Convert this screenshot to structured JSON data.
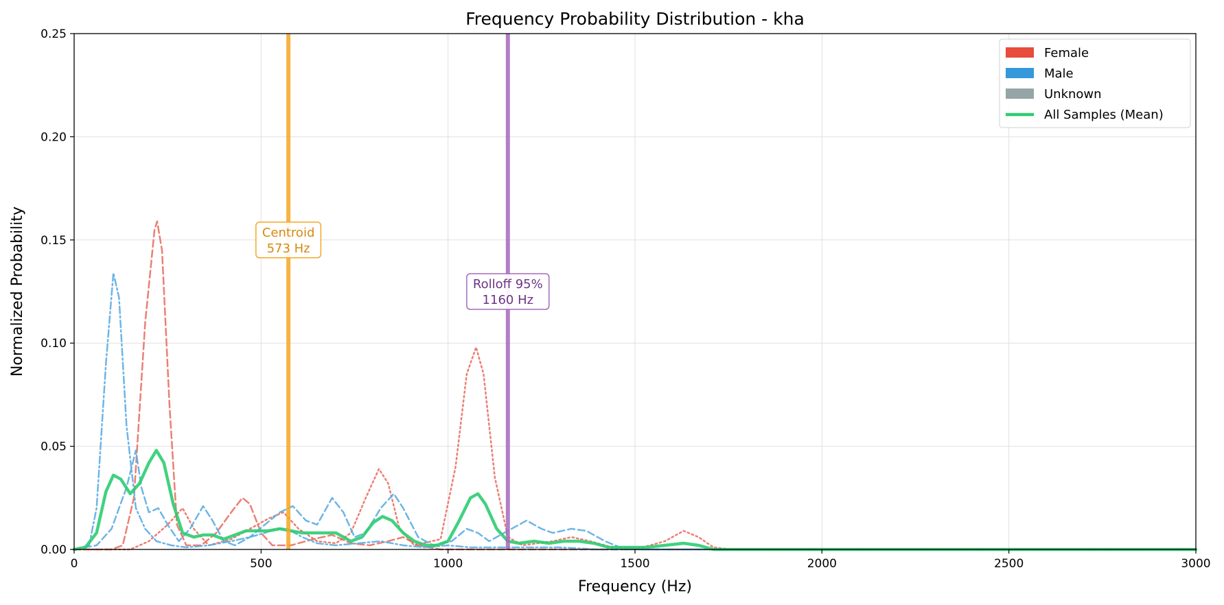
{
  "chart_data": {
    "type": "line",
    "title": "Frequency Probability Distribution - kha",
    "xlabel": "Frequency (Hz)",
    "ylabel": "Normalized Probability",
    "xlim": [
      0,
      3000
    ],
    "ylim": [
      0,
      0.25
    ],
    "x_ticks": [
      0,
      500,
      1000,
      1500,
      2000,
      2500,
      3000
    ],
    "y_ticks": [
      0.0,
      0.05,
      0.1,
      0.15,
      0.2,
      0.25
    ],
    "x_tick_labels": [
      "0",
      "500",
      "1000",
      "1500",
      "2000",
      "2500",
      "3000"
    ],
    "y_tick_labels": [
      "0.00",
      "0.05",
      "0.10",
      "0.15",
      "0.20",
      "0.25"
    ],
    "grid": true,
    "legend_position": "top-right",
    "legend": [
      {
        "label": "Female",
        "kind": "patch",
        "color": "#e74c3c"
      },
      {
        "label": "Male",
        "kind": "patch",
        "color": "#3498db"
      },
      {
        "label": "Unknown",
        "kind": "patch",
        "color": "#95a5a6"
      },
      {
        "label": "All Samples (Mean)",
        "kind": "line",
        "color": "#2ecc71"
      }
    ],
    "vertical_lines": [
      {
        "x": 573,
        "color": "#f5a623",
        "text_color": "#d68910",
        "label_line1": "Centroid",
        "label_line2": "573 Hz",
        "label_y": 0.15
      },
      {
        "x": 1160,
        "color": "#a569bd",
        "text_color": "#6c3483",
        "label_line1": "Rolloff 95%",
        "label_line2": "1160 Hz",
        "label_y": 0.125
      }
    ],
    "series": [
      {
        "group": "Female",
        "color": "#e8685b",
        "dash": "dashed",
        "width": 2.5,
        "opacity": 0.85,
        "points": [
          [
            0,
            0
          ],
          [
            100,
            0
          ],
          [
            130,
            0.002
          ],
          [
            160,
            0.025
          ],
          [
            190,
            0.11
          ],
          [
            215,
            0.155
          ],
          [
            222,
            0.159
          ],
          [
            235,
            0.145
          ],
          [
            255,
            0.07
          ],
          [
            275,
            0.012
          ],
          [
            300,
            0.002
          ],
          [
            340,
            0.002
          ],
          [
            380,
            0.008
          ],
          [
            420,
            0.018
          ],
          [
            450,
            0.025
          ],
          [
            470,
            0.022
          ],
          [
            500,
            0.008
          ],
          [
            530,
            0.002
          ],
          [
            580,
            0.002
          ],
          [
            640,
            0.005
          ],
          [
            690,
            0.007
          ],
          [
            740,
            0.003
          ],
          [
            790,
            0.002
          ],
          [
            840,
            0.004
          ],
          [
            880,
            0.006
          ],
          [
            920,
            0.002
          ],
          [
            980,
            0
          ],
          [
            3000,
            0
          ]
        ]
      },
      {
        "group": "Female",
        "color": "#e8685b",
        "dash": "dotted",
        "width": 2.5,
        "opacity": 0.85,
        "points": [
          [
            0,
            0
          ],
          [
            150,
            0
          ],
          [
            200,
            0.004
          ],
          [
            250,
            0.012
          ],
          [
            290,
            0.02
          ],
          [
            320,
            0.01
          ],
          [
            360,
            0.002
          ],
          [
            420,
            0.005
          ],
          [
            470,
            0.01
          ],
          [
            520,
            0.015
          ],
          [
            560,
            0.018
          ],
          [
            600,
            0.01
          ],
          [
            650,
            0.004
          ],
          [
            700,
            0.003
          ],
          [
            740,
            0.008
          ],
          [
            780,
            0.025
          ],
          [
            815,
            0.039
          ],
          [
            840,
            0.032
          ],
          [
            870,
            0.01
          ],
          [
            910,
            0.002
          ],
          [
            980,
            0.005
          ],
          [
            1020,
            0.04
          ],
          [
            1050,
            0.085
          ],
          [
            1075,
            0.098
          ],
          [
            1095,
            0.085
          ],
          [
            1125,
            0.035
          ],
          [
            1160,
            0.006
          ],
          [
            1200,
            0.002
          ],
          [
            1280,
            0.004
          ],
          [
            1330,
            0.006
          ],
          [
            1380,
            0.004
          ],
          [
            1440,
            0.001
          ],
          [
            1520,
            0.001
          ],
          [
            1580,
            0.004
          ],
          [
            1630,
            0.009
          ],
          [
            1670,
            0.006
          ],
          [
            1710,
            0.001
          ],
          [
            1760,
            0
          ],
          [
            3000,
            0
          ]
        ]
      },
      {
        "group": "Male",
        "color": "#5dade2",
        "dash": "dashdot",
        "width": 2.5,
        "opacity": 0.9,
        "points": [
          [
            0,
            0
          ],
          [
            40,
            0.002
          ],
          [
            60,
            0.02
          ],
          [
            85,
            0.09
          ],
          [
            105,
            0.134
          ],
          [
            120,
            0.122
          ],
          [
            140,
            0.06
          ],
          [
            165,
            0.02
          ],
          [
            190,
            0.01
          ],
          [
            220,
            0.004
          ],
          [
            260,
            0.002
          ],
          [
            300,
            0.001
          ],
          [
            360,
            0.002
          ],
          [
            420,
            0.004
          ],
          [
            470,
            0.006
          ],
          [
            510,
            0.008
          ],
          [
            540,
            0.01
          ],
          [
            570,
            0.01
          ],
          [
            610,
            0.006
          ],
          [
            650,
            0.003
          ],
          [
            700,
            0.002
          ],
          [
            760,
            0.003
          ],
          [
            820,
            0.004
          ],
          [
            880,
            0.002
          ],
          [
            940,
            0.001
          ],
          [
            1000,
            0.002
          ],
          [
            1060,
            0.001
          ],
          [
            1120,
            0.001
          ],
          [
            1200,
            0.001
          ],
          [
            1300,
            0.001
          ],
          [
            1400,
            0
          ],
          [
            3000,
            0
          ]
        ]
      },
      {
        "group": "Male",
        "color": "#5dade2",
        "dash": "dashed",
        "width": 2.5,
        "opacity": 0.9,
        "points": [
          [
            0,
            0
          ],
          [
            60,
            0.002
          ],
          [
            100,
            0.01
          ],
          [
            140,
            0.03
          ],
          [
            165,
            0.048
          ],
          [
            180,
            0.03
          ],
          [
            200,
            0.018
          ],
          [
            225,
            0.02
          ],
          [
            250,
            0.012
          ],
          [
            280,
            0.004
          ],
          [
            310,
            0.01
          ],
          [
            345,
            0.021
          ],
          [
            370,
            0.014
          ],
          [
            400,
            0.004
          ],
          [
            430,
            0.002
          ],
          [
            470,
            0.006
          ],
          [
            510,
            0.012
          ],
          [
            550,
            0.018
          ],
          [
            585,
            0.021
          ],
          [
            620,
            0.014
          ],
          [
            650,
            0.012
          ],
          [
            690,
            0.025
          ],
          [
            720,
            0.018
          ],
          [
            750,
            0.006
          ],
          [
            780,
            0.008
          ],
          [
            820,
            0.02
          ],
          [
            855,
            0.027
          ],
          [
            880,
            0.02
          ],
          [
            920,
            0.006
          ],
          [
            960,
            0.002
          ],
          [
            1010,
            0.004
          ],
          [
            1050,
            0.01
          ],
          [
            1080,
            0.008
          ],
          [
            1110,
            0.004
          ],
          [
            1150,
            0.008
          ],
          [
            1210,
            0.014
          ],
          [
            1250,
            0.01
          ],
          [
            1280,
            0.008
          ],
          [
            1330,
            0.01
          ],
          [
            1370,
            0.009
          ],
          [
            1420,
            0.004
          ],
          [
            1460,
            0.001
          ],
          [
            1520,
            0
          ],
          [
            3000,
            0
          ]
        ]
      },
      {
        "group": "All Samples (Mean)",
        "color": "#2ecc71",
        "dash": "solid",
        "width": 4.5,
        "opacity": 0.9,
        "points": [
          [
            0,
            0
          ],
          [
            30,
            0.001
          ],
          [
            60,
            0.008
          ],
          [
            85,
            0.028
          ],
          [
            105,
            0.036
          ],
          [
            125,
            0.034
          ],
          [
            150,
            0.027
          ],
          [
            175,
            0.032
          ],
          [
            200,
            0.042
          ],
          [
            220,
            0.048
          ],
          [
            240,
            0.042
          ],
          [
            265,
            0.022
          ],
          [
            290,
            0.008
          ],
          [
            320,
            0.006
          ],
          [
            345,
            0.007
          ],
          [
            370,
            0.007
          ],
          [
            400,
            0.005
          ],
          [
            430,
            0.007
          ],
          [
            460,
            0.009
          ],
          [
            490,
            0.009
          ],
          [
            520,
            0.009
          ],
          [
            550,
            0.01
          ],
          [
            580,
            0.009
          ],
          [
            610,
            0.008
          ],
          [
            640,
            0.008
          ],
          [
            670,
            0.008
          ],
          [
            700,
            0.008
          ],
          [
            740,
            0.004
          ],
          [
            770,
            0.006
          ],
          [
            800,
            0.013
          ],
          [
            825,
            0.016
          ],
          [
            850,
            0.014
          ],
          [
            880,
            0.008
          ],
          [
            910,
            0.004
          ],
          [
            940,
            0.002
          ],
          [
            970,
            0.002
          ],
          [
            1000,
            0.004
          ],
          [
            1030,
            0.014
          ],
          [
            1060,
            0.025
          ],
          [
            1080,
            0.027
          ],
          [
            1100,
            0.022
          ],
          [
            1130,
            0.01
          ],
          [
            1160,
            0.004
          ],
          [
            1190,
            0.003
          ],
          [
            1230,
            0.004
          ],
          [
            1270,
            0.003
          ],
          [
            1310,
            0.004
          ],
          [
            1350,
            0.004
          ],
          [
            1390,
            0.003
          ],
          [
            1430,
            0.001
          ],
          [
            1480,
            0.001
          ],
          [
            1530,
            0.001
          ],
          [
            1580,
            0.002
          ],
          [
            1630,
            0.003
          ],
          [
            1670,
            0.002
          ],
          [
            1710,
            0
          ],
          [
            3000,
            0
          ]
        ]
      }
    ]
  }
}
